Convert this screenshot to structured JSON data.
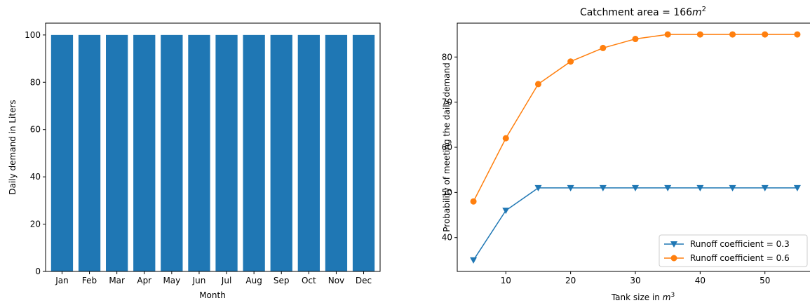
{
  "chart_data": [
    {
      "type": "bar",
      "title": "",
      "xlabel": "Month",
      "ylabel": "Daily demand in Liters",
      "categories": [
        "Jan",
        "Feb",
        "Mar",
        "Apr",
        "May",
        "Jun",
        "Jul",
        "Aug",
        "Sep",
        "Oct",
        "Nov",
        "Dec"
      ],
      "values": [
        100,
        100,
        100,
        100,
        100,
        100,
        100,
        100,
        100,
        100,
        100,
        100
      ],
      "ylim": [
        0,
        105
      ],
      "yticks": [
        0,
        20,
        40,
        60,
        80,
        100
      ],
      "color": "#1f77b4",
      "grid": false
    },
    {
      "type": "line",
      "title_prefix": "Catchment area  = 166",
      "title_sup_base": "m",
      "title_sup": "2",
      "xlabel_prefix": "Tank size in ",
      "xlabel_sup_base": "m",
      "xlabel_sup": "3",
      "ylabel": "Probability of meeting the daily demand",
      "x": [
        5,
        10,
        15,
        20,
        25,
        30,
        35,
        40,
        45,
        50,
        55
      ],
      "xlim": [
        2.5,
        57.5
      ],
      "ylim": [
        32.5,
        87.5
      ],
      "xticks": [
        10,
        20,
        30,
        40,
        50
      ],
      "yticks": [
        40,
        50,
        60,
        70,
        80
      ],
      "grid": false,
      "legend_position": "lower-right",
      "series": [
        {
          "name": "Runoff coefficient  = 0.3",
          "values": [
            35,
            46,
            51,
            51,
            51,
            51,
            51,
            51,
            51,
            51,
            51
          ],
          "color": "#1f77b4",
          "marker": "triangle-down"
        },
        {
          "name": "Runoff coefficient  = 0.6",
          "values": [
            48,
            62,
            74,
            79,
            82,
            84,
            85,
            85,
            85,
            85,
            85
          ],
          "color": "#ff7f0e",
          "marker": "circle"
        }
      ]
    }
  ]
}
